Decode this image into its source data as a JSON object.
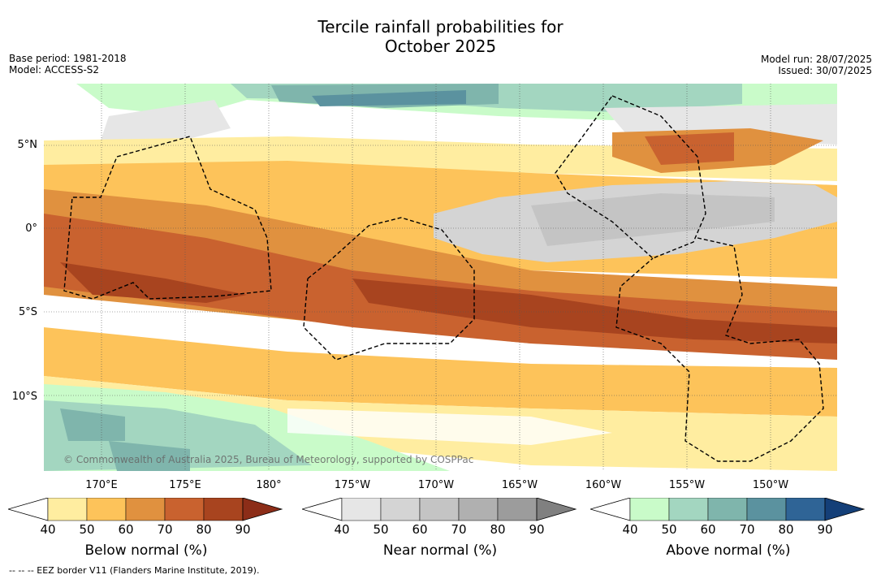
{
  "title_line1": "Tercile rainfall probabilities for",
  "title_line2": "October 2025",
  "base_period": "Base period: 1981-2018",
  "model": "Model: ACCESS-S2",
  "model_run": "Model run: 28/07/2025",
  "issued": "Issued: 30/07/2025",
  "latitude_labels": [
    "5°N",
    "0°",
    "5°S",
    "10°S"
  ],
  "longitude_labels": [
    "170°E",
    "175°E",
    "180°",
    "175°W",
    "170°W",
    "165°W",
    "160°W",
    "155°W",
    "150°W"
  ],
  "copyright": "© Commonwealth of Australia 2025, Bureau of Meteorology, supported by COSPPac",
  "footnote": "--  --  -- EEZ border V11 (Flanders Marine Institute, 2019).",
  "colorbars": [
    {
      "name": "below",
      "title": "Below normal (%)",
      "ticks": [
        "40",
        "50",
        "60",
        "70",
        "80",
        "90"
      ],
      "colors": [
        "#ffeda0",
        "#fdc35a",
        "#e0913f",
        "#c9622f",
        "#a8441f",
        "#8c2d18"
      ]
    },
    {
      "name": "near",
      "title": "Near normal (%)",
      "ticks": [
        "40",
        "50",
        "60",
        "70",
        "80",
        "90"
      ],
      "colors": [
        "#e6e6e6",
        "#d4d4d4",
        "#c4c4c4",
        "#b0b0b0",
        "#9c9c9c",
        "#808080"
      ]
    },
    {
      "name": "above",
      "title": "Above normal (%)",
      "ticks": [
        "40",
        "50",
        "60",
        "70",
        "80",
        "90"
      ],
      "colors": [
        "#c9fbc9",
        "#a3d6c0",
        "#7fb5ac",
        "#5b929f",
        "#2f6496",
        "#143f78"
      ]
    }
  ],
  "colors": {
    "sea_white": "#ffffff",
    "grid": "#555555",
    "eez": "#000000"
  }
}
